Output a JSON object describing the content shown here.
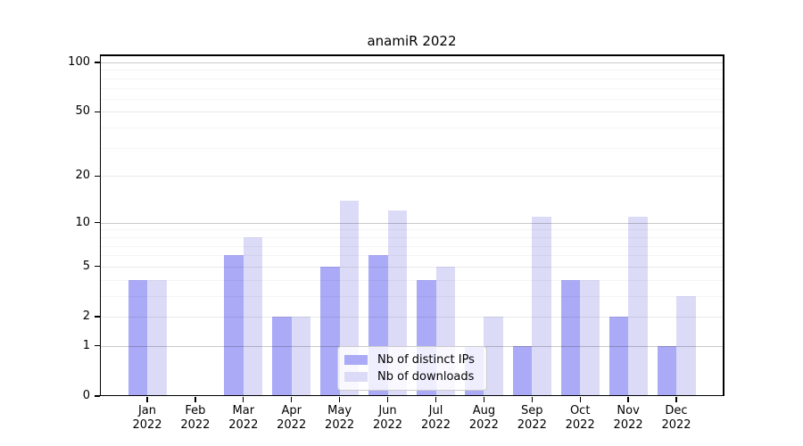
{
  "title": "anamiR 2022",
  "chart_data": {
    "type": "bar",
    "categories": [
      "Jan",
      "Feb",
      "Mar",
      "Apr",
      "May",
      "Jun",
      "Jul",
      "Aug",
      "Sep",
      "Oct",
      "Nov",
      "Dec"
    ],
    "year_label": "2022",
    "series": [
      {
        "name": "Nb of distinct IPs",
        "color": "#aaaaf7",
        "values": [
          4,
          0,
          6,
          2,
          5,
          6,
          4,
          1,
          1,
          4,
          2,
          1
        ]
      },
      {
        "name": "Nb of downloads",
        "color": "#dbdbf8",
        "values": [
          4,
          0,
          8,
          2,
          14,
          12,
          5,
          2,
          11,
          4,
          11,
          3
        ]
      }
    ],
    "y_axis": {
      "scale": "log1p",
      "tick_labels": [
        "0",
        "1",
        "2",
        "5",
        "10",
        "20",
        "50",
        "100"
      ],
      "tick_values": [
        0,
        1,
        2,
        5,
        10,
        20,
        50,
        100
      ],
      "major_grid_values": [
        1,
        10,
        100
      ],
      "mid_grid_values": [
        2,
        5,
        20,
        50
      ],
      "minor_grid_values": [
        3,
        4,
        6,
        7,
        8,
        9,
        30,
        40,
        60,
        70,
        80,
        90
      ],
      "ylim": [
        0,
        112
      ]
    },
    "legend": {
      "position": "lower center"
    },
    "grid": "on"
  }
}
